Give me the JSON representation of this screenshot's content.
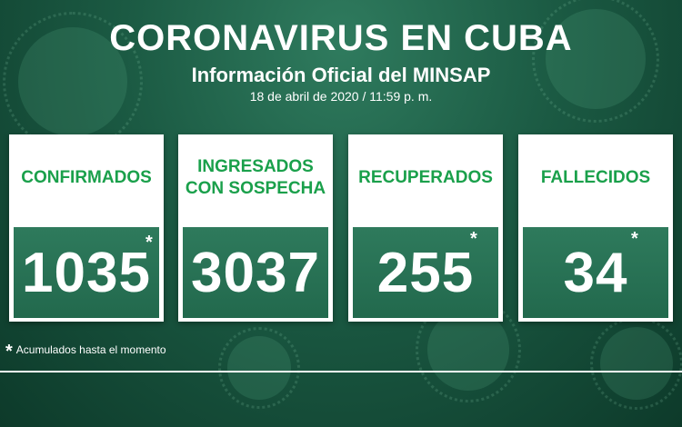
{
  "header": {
    "title": "CORONAVIRUS EN CUBA",
    "subtitle": "Información Oficial del MINSAP",
    "timestamp": "18 de abril de 2020 / 11:59 p. m."
  },
  "cards": [
    {
      "label": "CONFIRMADOS",
      "value": "1035",
      "asterisk": "*"
    },
    {
      "label": "INGRESADOS\nCON SOSPECHA",
      "value": "3037",
      "asterisk": ""
    },
    {
      "label": "RECUPERADOS",
      "value": "255",
      "asterisk": "*"
    },
    {
      "label": "FALLECIDOS",
      "value": "34",
      "asterisk": "*"
    }
  ],
  "footnote": {
    "star": "*",
    "text": "Acumulados hasta el momento"
  },
  "colors": {
    "label_green": "#1aa04b",
    "background": "#1b5a43",
    "number_box": "#22694d"
  }
}
